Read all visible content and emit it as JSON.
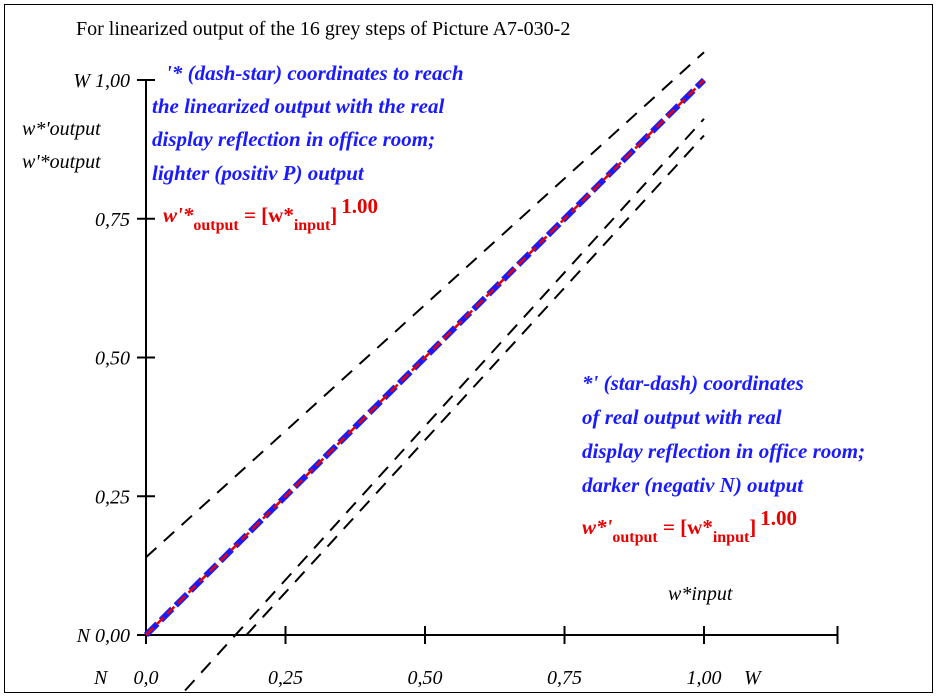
{
  "chart_data": {
    "type": "line",
    "title": "For linearized output of the 16 grey steps of Picture A7-030-2",
    "x_ticks": [
      "0,0",
      "0,25",
      "0,50",
      "0,75",
      "1,00"
    ],
    "x_tick_values": [
      0,
      0.25,
      0.5,
      0.75,
      1.0
    ],
    "y_ticks": [
      "N 0,00",
      "0,25",
      "0,50",
      "0,75",
      "W 1,00"
    ],
    "y_tick_values": [
      0,
      0.25,
      0.5,
      0.75,
      1.0
    ],
    "x_prefix": "N",
    "x_suffix": "W",
    "xlim": [
      0,
      1.25
    ],
    "ylim": [
      0,
      1.0
    ],
    "ylabels": [
      "w*'output",
      "w'*output"
    ],
    "xlabel": "w*input",
    "series": [
      {
        "x": [
          0,
          0.0667,
          0.1333,
          0.2,
          0.2667,
          0.3333,
          0.4,
          0.4667,
          0.5333,
          0.6,
          0.6667,
          0.7333,
          0.8,
          0.8667,
          0.9333,
          1.0
        ],
        "y": [
          0,
          0.0667,
          0.1333,
          0.2,
          0.2667,
          0.3333,
          0.4,
          0.4667,
          0.5333,
          0.6,
          0.6667,
          0.7333,
          0.8,
          0.8667,
          0.9333,
          1.0
        ],
        "color": "#1a1aff"
      },
      {
        "x": [
          0,
          1.0
        ],
        "y": [
          0,
          1.0
        ],
        "color": "#e60000"
      }
    ],
    "guide_lines": [
      {
        "x": [
          0,
          1.0
        ],
        "y": [
          0.14,
          1.05
        ]
      },
      {
        "x": [
          0.07,
          1.0
        ],
        "y": [
          -0.1,
          0.93
        ]
      },
      {
        "x": [
          0.18,
          1.0
        ],
        "y": [
          0,
          0.9
        ]
      }
    ],
    "annotation_upper": {
      "lines": [
        "'* (dash-star) coordinates to reach",
        "the linearized output with the real",
        "display reflection in office room;",
        "lighter (positiv P) output"
      ],
      "formula": {
        "lhs": "w'*",
        "lhs_sub": "output",
        "eq": " = [w*",
        "rhs_sub": "input",
        "close": "]",
        "exp": "1.00"
      }
    },
    "annotation_lower": {
      "lines": [
        "*' (star-dash) coordinates",
        "of real output with real",
        "display reflection in office room;",
        "darker (negativ N) output"
      ],
      "formula": {
        "lhs": "w*'",
        "lhs_sub": "output",
        "eq": " = [w*",
        "rhs_sub": "input",
        "close": "]",
        "exp": "1.00"
      }
    }
  }
}
